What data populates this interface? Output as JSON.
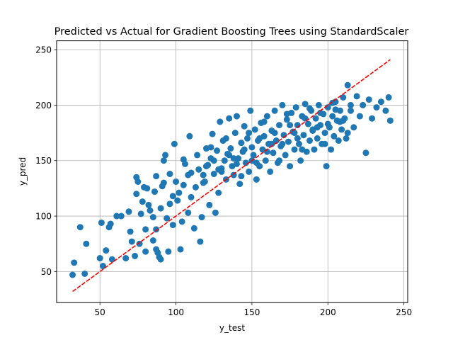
{
  "chart_data": {
    "type": "scatter",
    "title": "Predicted vs Actual for Gradient Boosting Trees using StandardScaler",
    "xlabel": "y_test",
    "ylabel": "y_pred",
    "xlim": [
      21.5,
      252.5
    ],
    "ylim": [
      22,
      258
    ],
    "xticks": [
      50,
      100,
      150,
      200,
      250
    ],
    "yticks": [
      50,
      100,
      150,
      200,
      250
    ],
    "grid": true,
    "colors": {
      "points": "#1f77b4",
      "identity_line": "#ff0000",
      "grid": "#b0b0b0"
    },
    "points": [
      [
        32,
        47
      ],
      [
        33,
        58
      ],
      [
        37,
        90
      ],
      [
        40,
        48
      ],
      [
        41,
        75
      ],
      [
        50,
        62
      ],
      [
        51,
        94
      ],
      [
        52,
        55
      ],
      [
        54,
        69
      ],
      [
        56,
        90
      ],
      [
        57,
        93
      ],
      [
        58,
        61
      ],
      [
        61,
        100
      ],
      [
        64,
        100
      ],
      [
        67,
        62
      ],
      [
        69,
        104
      ],
      [
        70,
        86
      ],
      [
        71,
        77
      ],
      [
        73,
        64
      ],
      [
        74,
        120
      ],
      [
        74,
        135
      ],
      [
        75,
        131
      ],
      [
        76,
        75
      ],
      [
        77,
        102
      ],
      [
        78,
        113
      ],
      [
        79,
        126
      ],
      [
        80,
        88
      ],
      [
        80,
        68
      ],
      [
        81,
        125
      ],
      [
        82,
        110
      ],
      [
        83,
        105
      ],
      [
        85,
        78
      ],
      [
        85,
        99
      ],
      [
        86,
        122
      ],
      [
        87,
        88
      ],
      [
        87,
        136
      ],
      [
        87,
        70
      ],
      [
        88,
        67
      ],
      [
        89,
        63
      ],
      [
        90,
        61
      ],
      [
        90,
        107
      ],
      [
        91,
        127
      ],
      [
        92,
        150
      ],
      [
        92,
        130
      ],
      [
        93,
        155
      ],
      [
        94,
        98
      ],
      [
        95,
        68
      ],
      [
        96,
        138
      ],
      [
        96,
        111
      ],
      [
        98,
        118
      ],
      [
        98,
        92
      ],
      [
        99,
        165
      ],
      [
        100,
        131
      ],
      [
        101,
        114
      ],
      [
        102,
        121
      ],
      [
        103,
        70
      ],
      [
        104,
        95
      ],
      [
        105,
        151
      ],
      [
        105,
        128
      ],
      [
        106,
        147
      ],
      [
        108,
        137
      ],
      [
        108,
        103
      ],
      [
        109,
        172
      ],
      [
        110,
        117
      ],
      [
        110,
        139
      ],
      [
        112,
        89
      ],
      [
        113,
        126
      ],
      [
        114,
        155
      ],
      [
        115,
        142
      ],
      [
        116,
        77
      ],
      [
        117,
        99
      ],
      [
        118,
        130
      ],
      [
        119,
        131
      ],
      [
        120,
        161
      ],
      [
        121,
        146
      ],
      [
        122,
        110
      ],
      [
        123,
        152
      ],
      [
        124,
        174
      ],
      [
        125,
        138
      ],
      [
        126,
        103
      ],
      [
        127,
        159
      ],
      [
        128,
        121
      ],
      [
        129,
        185
      ],
      [
        130,
        143
      ],
      [
        131,
        168
      ],
      [
        132,
        150
      ],
      [
        133,
        133
      ],
      [
        134,
        156
      ],
      [
        135,
        188
      ],
      [
        136,
        161
      ],
      [
        137,
        145
      ],
      [
        138,
        137
      ],
      [
        139,
        175
      ],
      [
        140,
        190
      ],
      [
        141,
        152
      ],
      [
        142,
        129
      ],
      [
        143,
        166
      ],
      [
        144,
        158
      ],
      [
        145,
        181
      ],
      [
        146,
        148
      ],
      [
        147,
        170
      ],
      [
        148,
        140
      ],
      [
        149,
        195
      ],
      [
        150,
        162
      ],
      [
        151,
        155
      ],
      [
        152,
        178
      ],
      [
        153,
        133
      ],
      [
        154,
        168
      ],
      [
        155,
        145
      ],
      [
        156,
        184
      ],
      [
        157,
        160
      ],
      [
        158,
        172
      ],
      [
        159,
        150
      ],
      [
        160,
        190
      ],
      [
        161,
        165
      ],
      [
        162,
        140
      ],
      [
        163,
        177
      ],
      [
        164,
        157
      ],
      [
        165,
        195
      ],
      [
        166,
        168
      ],
      [
        167,
        148
      ],
      [
        168,
        182
      ],
      [
        169,
        163
      ],
      [
        170,
        200
      ],
      [
        171,
        173
      ],
      [
        172,
        155
      ],
      [
        173,
        187
      ],
      [
        174,
        167
      ],
      [
        175,
        145
      ],
      [
        176,
        193
      ],
      [
        177,
        176
      ],
      [
        178,
        160
      ],
      [
        179,
        198
      ],
      [
        180,
        182
      ],
      [
        181,
        165
      ],
      [
        182,
        150
      ],
      [
        183,
        190
      ],
      [
        184,
        173
      ],
      [
        185,
        201
      ],
      [
        186,
        158
      ],
      [
        187,
        183
      ],
      [
        188,
        168
      ],
      [
        189,
        195
      ],
      [
        190,
        177
      ],
      [
        191,
        160
      ],
      [
        192,
        188
      ],
      [
        193,
        170
      ],
      [
        194,
        200
      ],
      [
        195,
        182
      ],
      [
        196,
        165
      ],
      [
        197,
        192
      ],
      [
        198,
        175
      ],
      [
        199,
        145
      ],
      [
        200,
        198
      ],
      [
        201,
        180
      ],
      [
        202,
        160
      ],
      [
        203,
        190
      ],
      [
        204,
        172
      ],
      [
        205,
        203
      ],
      [
        206,
        186
      ],
      [
        207,
        168
      ],
      [
        208,
        195
      ],
      [
        209,
        178
      ],
      [
        210,
        207
      ],
      [
        211,
        188
      ],
      [
        212,
        170
      ],
      [
        213,
        218
      ],
      [
        215,
        195
      ],
      [
        217,
        180
      ],
      [
        219,
        208
      ],
      [
        221,
        190
      ],
      [
        223,
        200
      ],
      [
        225,
        157
      ],
      [
        227,
        205
      ],
      [
        229,
        188
      ],
      [
        232,
        198
      ],
      [
        235,
        203
      ],
      [
        238,
        195
      ],
      [
        240,
        207
      ],
      [
        241,
        186
      ],
      [
        120,
        145
      ],
      [
        125,
        150
      ],
      [
        130,
        140
      ],
      [
        135,
        155
      ],
      [
        140,
        147
      ],
      [
        145,
        160
      ],
      [
        150,
        150
      ],
      [
        155,
        170
      ],
      [
        160,
        158
      ],
      [
        165,
        175
      ],
      [
        170,
        165
      ],
      [
        175,
        182
      ],
      [
        180,
        170
      ],
      [
        185,
        188
      ],
      [
        190,
        178
      ],
      [
        195,
        193
      ],
      [
        200,
        183
      ],
      [
        205,
        196
      ],
      [
        210,
        186
      ],
      [
        215,
        200
      ],
      [
        118,
        137
      ],
      [
        123,
        162
      ],
      [
        128,
        142
      ],
      [
        133,
        170
      ],
      [
        138,
        152
      ],
      [
        143,
        136
      ],
      [
        148,
        175
      ],
      [
        153,
        148
      ],
      [
        158,
        185
      ],
      [
        163,
        165
      ],
      [
        168,
        150
      ],
      [
        173,
        192
      ],
      [
        178,
        175
      ],
      [
        183,
        160
      ],
      [
        188,
        197
      ],
      [
        193,
        180
      ],
      [
        198,
        165
      ],
      [
        203,
        202
      ],
      [
        208,
        185
      ],
      [
        213,
        175
      ]
    ],
    "identity_line": {
      "from": [
        32,
        32
      ],
      "to": [
        241,
        241
      ]
    }
  }
}
